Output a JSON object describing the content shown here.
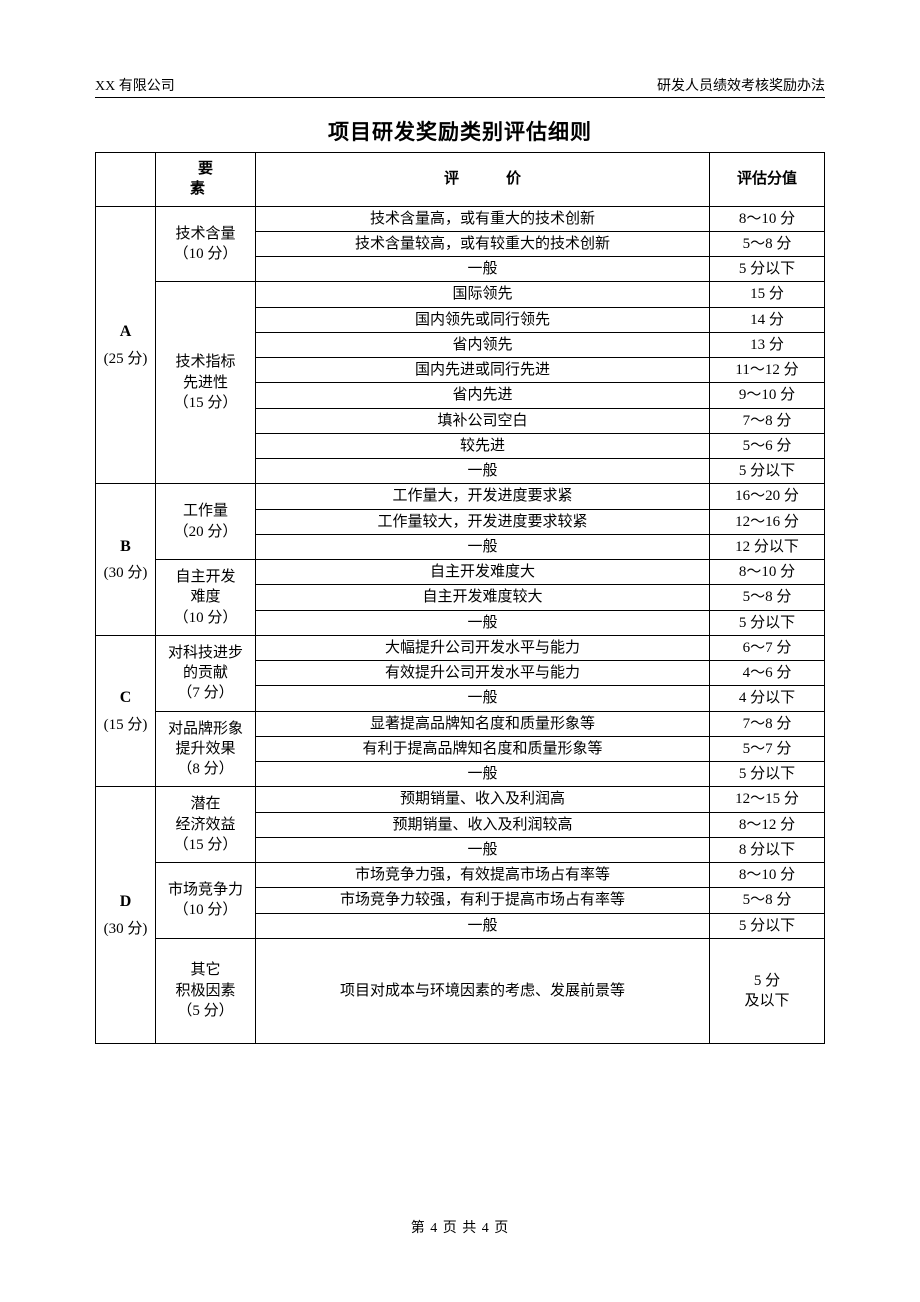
{
  "header": {
    "left": "XX 有限公司",
    "right": "研发人员绩效考核奖励办法"
  },
  "title": "项目研发奖励类别评估细则",
  "columns": {
    "cat": "",
    "factor": "要　素",
    "eval": "评　价",
    "score": "评估分值"
  },
  "groups": [
    {
      "cat": "A",
      "catScore": "(25 分)",
      "factors": [
        {
          "name": "技术含量\n（10 分）",
          "rows": [
            {
              "e": "技术含量高，或有重大的技术创新",
              "s": "8～10 分"
            },
            {
              "e": "技术含量较高，或有较重大的技术创新",
              "s": "5～8 分"
            },
            {
              "e": "一般",
              "s": "5 分以下"
            }
          ]
        },
        {
          "name": "技术指标\n先进性\n（15 分）",
          "rows": [
            {
              "e": "国际领先",
              "s": "15 分"
            },
            {
              "e": "国内领先或同行领先",
              "s": "14 分"
            },
            {
              "e": "省内领先",
              "s": "13 分"
            },
            {
              "e": "国内先进或同行先进",
              "s": "11～12 分"
            },
            {
              "e": "省内先进",
              "s": "9～10 分"
            },
            {
              "e": "填补公司空白",
              "s": "7～8 分"
            },
            {
              "e": "较先进",
              "s": "5～6 分"
            },
            {
              "e": "一般",
              "s": "5 分以下"
            }
          ]
        }
      ]
    },
    {
      "cat": "B",
      "catScore": "(30 分)",
      "factors": [
        {
          "name": "工作量\n（20 分）",
          "rows": [
            {
              "e": "工作量大，开发进度要求紧",
              "s": "16～20 分"
            },
            {
              "e": "工作量较大，开发进度要求较紧",
              "s": "12～16 分"
            },
            {
              "e": "一般",
              "s": "12 分以下"
            }
          ]
        },
        {
          "name": "自主开发\n难度\n（10 分）",
          "rows": [
            {
              "e": "自主开发难度大",
              "s": "8～10 分"
            },
            {
              "e": "自主开发难度较大",
              "s": "5～8 分"
            },
            {
              "e": "一般",
              "s": "5 分以下"
            }
          ]
        }
      ]
    },
    {
      "cat": "C",
      "catScore": "(15 分)",
      "factors": [
        {
          "name": "对科技进步\n的贡献\n（7 分）",
          "rows": [
            {
              "e": "大幅提升公司开发水平与能力",
              "s": "6～7 分"
            },
            {
              "e": "有效提升公司开发水平与能力",
              "s": "4～6 分"
            },
            {
              "e": "一般",
              "s": "4 分以下"
            }
          ]
        },
        {
          "name": "对品牌形象\n提升效果\n（8 分）",
          "rows": [
            {
              "e": "显著提高品牌知名度和质量形象等",
              "s": "7～8 分"
            },
            {
              "e": "有利于提高品牌知名度和质量形象等",
              "s": "5～7 分"
            },
            {
              "e": "一般",
              "s": "5 分以下"
            }
          ]
        }
      ]
    },
    {
      "cat": "D",
      "catScore": "(30 分)",
      "factors": [
        {
          "name": "潜在\n经济效益\n（15 分）",
          "rows": [
            {
              "e": "预期销量、收入及利润高",
              "s": "12～15 分"
            },
            {
              "e": "预期销量、收入及利润较高",
              "s": "8～12 分"
            },
            {
              "e": "一般",
              "s": "8 分以下"
            }
          ]
        },
        {
          "name": "市场竞争力\n（10 分）",
          "rows": [
            {
              "e": "市场竞争力强，有效提高市场占有率等",
              "s": "8～10 分"
            },
            {
              "e": "市场竞争力较强，有利于提高市场占有率等",
              "s": "5～8 分"
            },
            {
              "e": "一般",
              "s": "5 分以下"
            }
          ]
        },
        {
          "name": "其它\n积极因素\n（5 分）",
          "rows": [
            {
              "e": "项目对成本与环境因素的考虑、发展前景等",
              "s": "5 分\n及以下",
              "tall": true
            }
          ]
        }
      ]
    }
  ],
  "footer": "第 4 页 共 4 页"
}
